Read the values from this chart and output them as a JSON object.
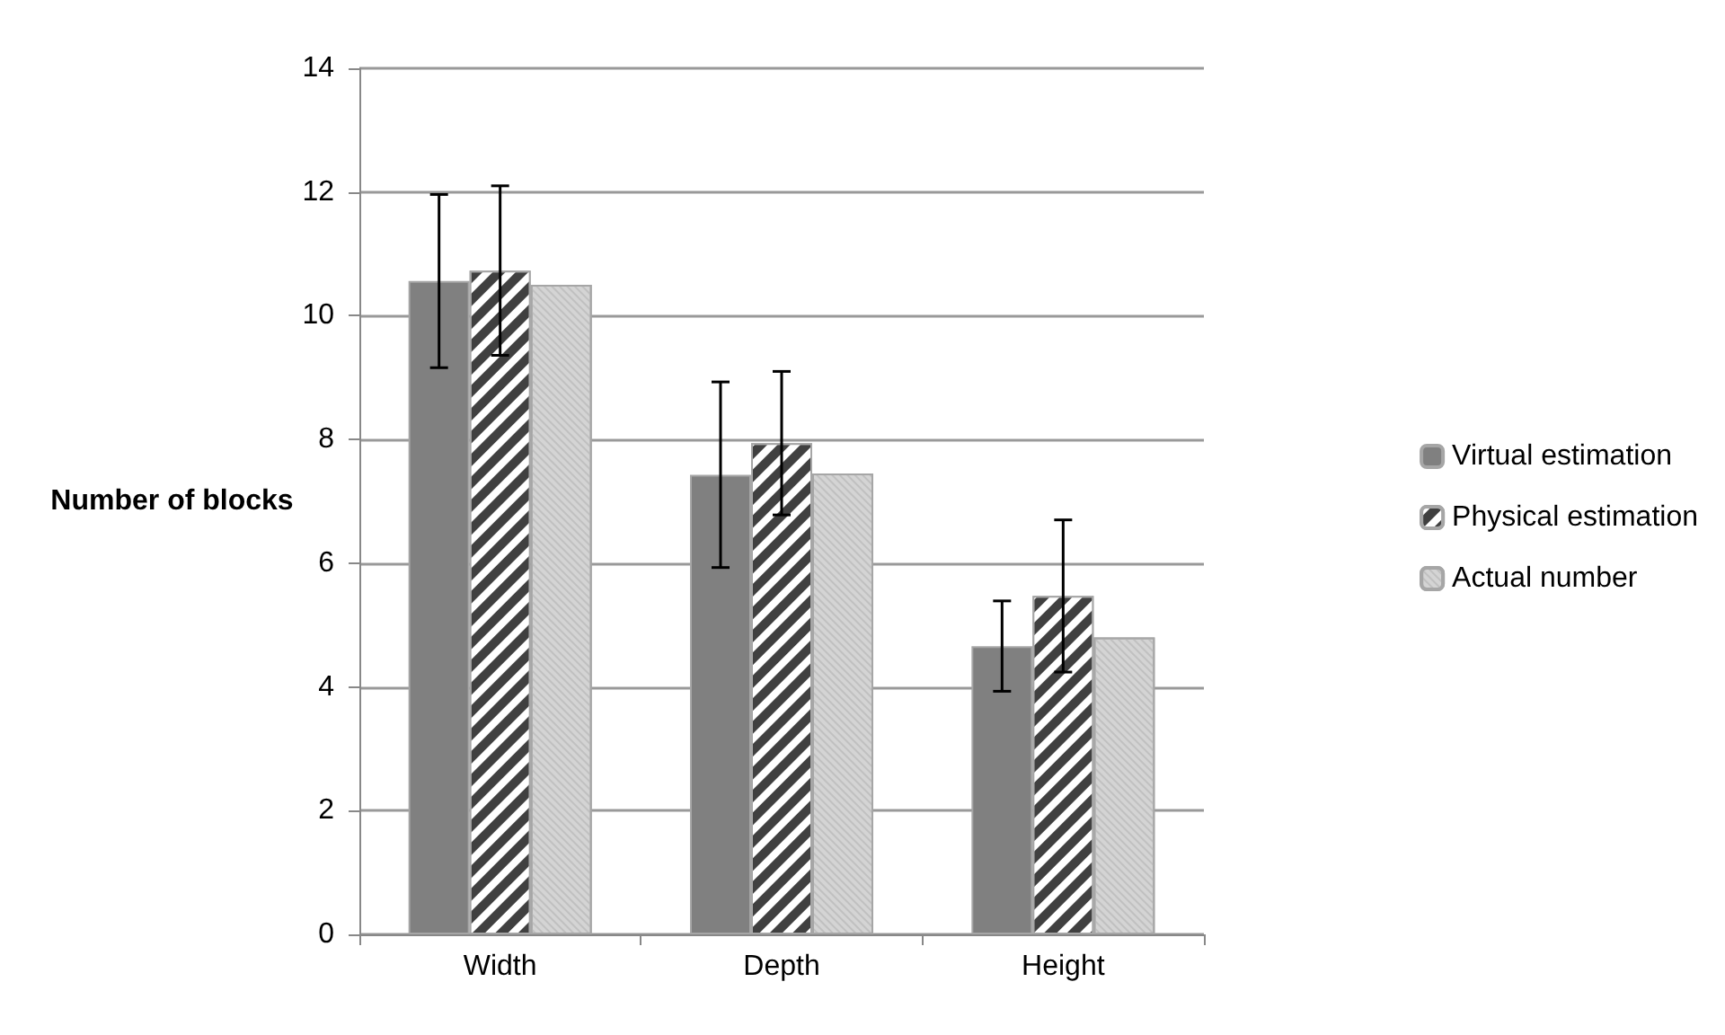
{
  "chart_data": {
    "type": "bar",
    "ylabel": "Number of blocks",
    "categories": [
      "Width",
      "Depth",
      "Height"
    ],
    "series": [
      {
        "name": "Virtual estimation",
        "color": "#808080",
        "values": [
          10.56,
          7.43,
          4.66
        ],
        "errors": [
          1.4,
          1.5,
          0.73
        ]
      },
      {
        "name": "Physical estimation",
        "color": "#404040",
        "values": [
          10.73,
          7.94,
          5.47
        ],
        "errors": [
          1.37,
          1.16,
          1.23
        ]
      },
      {
        "name": "Actual number",
        "color": "#d4d4d4",
        "values": [
          10.5,
          7.45,
          4.8
        ]
      }
    ],
    "ylim": [
      0,
      14
    ],
    "yticks": [
      0,
      2,
      4,
      6,
      8,
      10,
      12,
      14
    ],
    "grid": "y",
    "legend": "right"
  }
}
